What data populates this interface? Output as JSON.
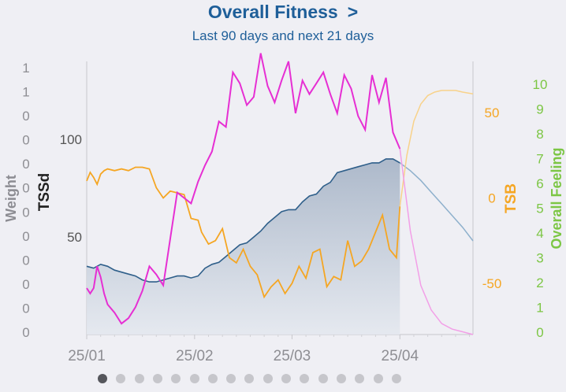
{
  "header": {
    "title": "Overall Fitness",
    "chevron": ">",
    "subtitle": "Last 90 days and next 21 days"
  },
  "pager": {
    "count": 17,
    "active_index": 0
  },
  "colors": {
    "title": "#1f5f99",
    "tssd_line": "#2f5f8a",
    "tssd_fill": "#c8d0dc",
    "forecast_tssd": "#8eb0cc",
    "tsb": "#f5a623",
    "forecast_tsb": "#f8d28a",
    "feeling": "#e62fd3",
    "forecast_feeling": "#f29fe7",
    "right_axis": "#7cc644",
    "weight": "#8d8d93",
    "tick": "#8e8e93"
  },
  "chart_data": {
    "type": "line",
    "x_labels": [
      "25/01",
      "25/02",
      "25/03",
      "25/04"
    ],
    "axes": {
      "weight": {
        "label": "Weight",
        "ticks": [
          "1",
          "1",
          "0",
          "0",
          "0",
          "0",
          "0",
          "0",
          "0",
          "0",
          "0",
          "0"
        ]
      },
      "tssd": {
        "label": "TSSd",
        "ticks": [
          100,
          50
        ],
        "range": [
          0,
          140
        ]
      },
      "tsb": {
        "label": "TSB",
        "ticks": [
          50,
          0,
          -50
        ],
        "range": [
          -80,
          80
        ]
      },
      "overall_feeling": {
        "label": "Overall Feeling",
        "ticks": [
          10,
          9,
          8,
          7,
          6,
          5,
          4,
          3,
          2,
          1,
          0
        ],
        "range": [
          0,
          10
        ]
      }
    },
    "series": [
      {
        "name": "TSSd",
        "axis": "tssd",
        "style": "area",
        "x": [
          0,
          2,
          4,
          6,
          8,
          10,
          12,
          14,
          16,
          18,
          20,
          22,
          24,
          26,
          28,
          30,
          32,
          34,
          36,
          38,
          40,
          42,
          44,
          46,
          48,
          50,
          52,
          54,
          56,
          58,
          60,
          62,
          64,
          66,
          68,
          70,
          72,
          74,
          76,
          78,
          80,
          82,
          84,
          86,
          88,
          90
        ],
        "y": [
          35,
          34,
          36,
          35,
          33,
          32,
          31,
          30,
          28,
          27,
          27,
          28,
          29,
          30,
          30,
          29,
          30,
          34,
          36,
          37,
          40,
          43,
          46,
          47,
          50,
          53,
          57,
          60,
          63,
          64,
          64,
          68,
          71,
          72,
          76,
          78,
          83,
          84,
          85,
          86,
          87,
          88,
          88,
          90,
          90,
          88
        ]
      },
      {
        "name": "TSSd forecast",
        "axis": "tssd",
        "style": "forecast",
        "x": [
          90,
          93,
          96,
          99,
          102,
          105,
          108,
          111
        ],
        "y": [
          88,
          84,
          79,
          73,
          67,
          61,
          55,
          48
        ]
      },
      {
        "name": "TSB",
        "axis": "tsb",
        "x": [
          0,
          1,
          2,
          3,
          4,
          5,
          6,
          8,
          10,
          12,
          14,
          16,
          18,
          20,
          22,
          24,
          26,
          28,
          30,
          32,
          33,
          35,
          37,
          39,
          41,
          43,
          45,
          47,
          49,
          51,
          53,
          55,
          57,
          59,
          61,
          63,
          65,
          67,
          69,
          71,
          73,
          75,
          77,
          79,
          81,
          83,
          85,
          87,
          89,
          90
        ],
        "y": [
          10,
          15,
          12,
          8,
          14,
          16,
          17,
          16,
          17,
          16,
          18,
          18,
          17,
          6,
          0,
          4,
          3,
          2,
          -12,
          -13,
          -20,
          -27,
          -25,
          -18,
          -35,
          -38,
          -30,
          -40,
          -45,
          -58,
          -52,
          -48,
          -56,
          -50,
          -40,
          -47,
          -32,
          -30,
          -52,
          -46,
          -48,
          -25,
          -40,
          -37,
          -30,
          -20,
          -10,
          -30,
          -35,
          -5
        ]
      },
      {
        "name": "TSB forecast",
        "axis": "tsb",
        "style": "forecast",
        "x": [
          90,
          92,
          94,
          96,
          98,
          100,
          102,
          104,
          106,
          108,
          111
        ],
        "y": [
          -5,
          25,
          45,
          55,
          60,
          62,
          63,
          63,
          63,
          62,
          61
        ]
      },
      {
        "name": "Overall Feeling",
        "axis": "overall_feeling",
        "x": [
          0,
          1,
          2,
          3,
          4,
          5,
          6,
          8,
          10,
          12,
          14,
          16,
          18,
          20,
          22,
          24,
          26,
          28,
          30,
          32,
          34,
          36,
          38,
          40,
          42,
          44,
          46,
          48,
          50,
          52,
          54,
          56,
          58,
          60,
          62,
          64,
          66,
          68,
          70,
          72,
          74,
          76,
          78,
          80,
          82,
          84,
          86,
          88,
          90
        ],
        "y": [
          1.7,
          1.5,
          1.7,
          2.5,
          2.1,
          1.5,
          1.1,
          0.8,
          0.4,
          0.6,
          1.0,
          1.6,
          2.5,
          2.2,
          1.8,
          3.5,
          5.2,
          5.0,
          4.8,
          5.6,
          6.2,
          6.7,
          7.8,
          7.6,
          9.6,
          9.2,
          8.4,
          8.7,
          10.3,
          9.1,
          8.5,
          9.3,
          10.0,
          8.1,
          9.3,
          8.8,
          9.2,
          9.6,
          8.8,
          8.1,
          9.5,
          9.0,
          8.0,
          7.5,
          9.5,
          8.5,
          9.4,
          7.4,
          6.8
        ]
      },
      {
        "name": "Overall Feeling forecast",
        "axis": "overall_feeling",
        "style": "forecast",
        "x": [
          90,
          93,
          96,
          99,
          102,
          105,
          108,
          111
        ],
        "y": [
          6.8,
          3.8,
          1.8,
          0.9,
          0.4,
          0.2,
          0.1,
          0.0
        ]
      }
    ]
  }
}
